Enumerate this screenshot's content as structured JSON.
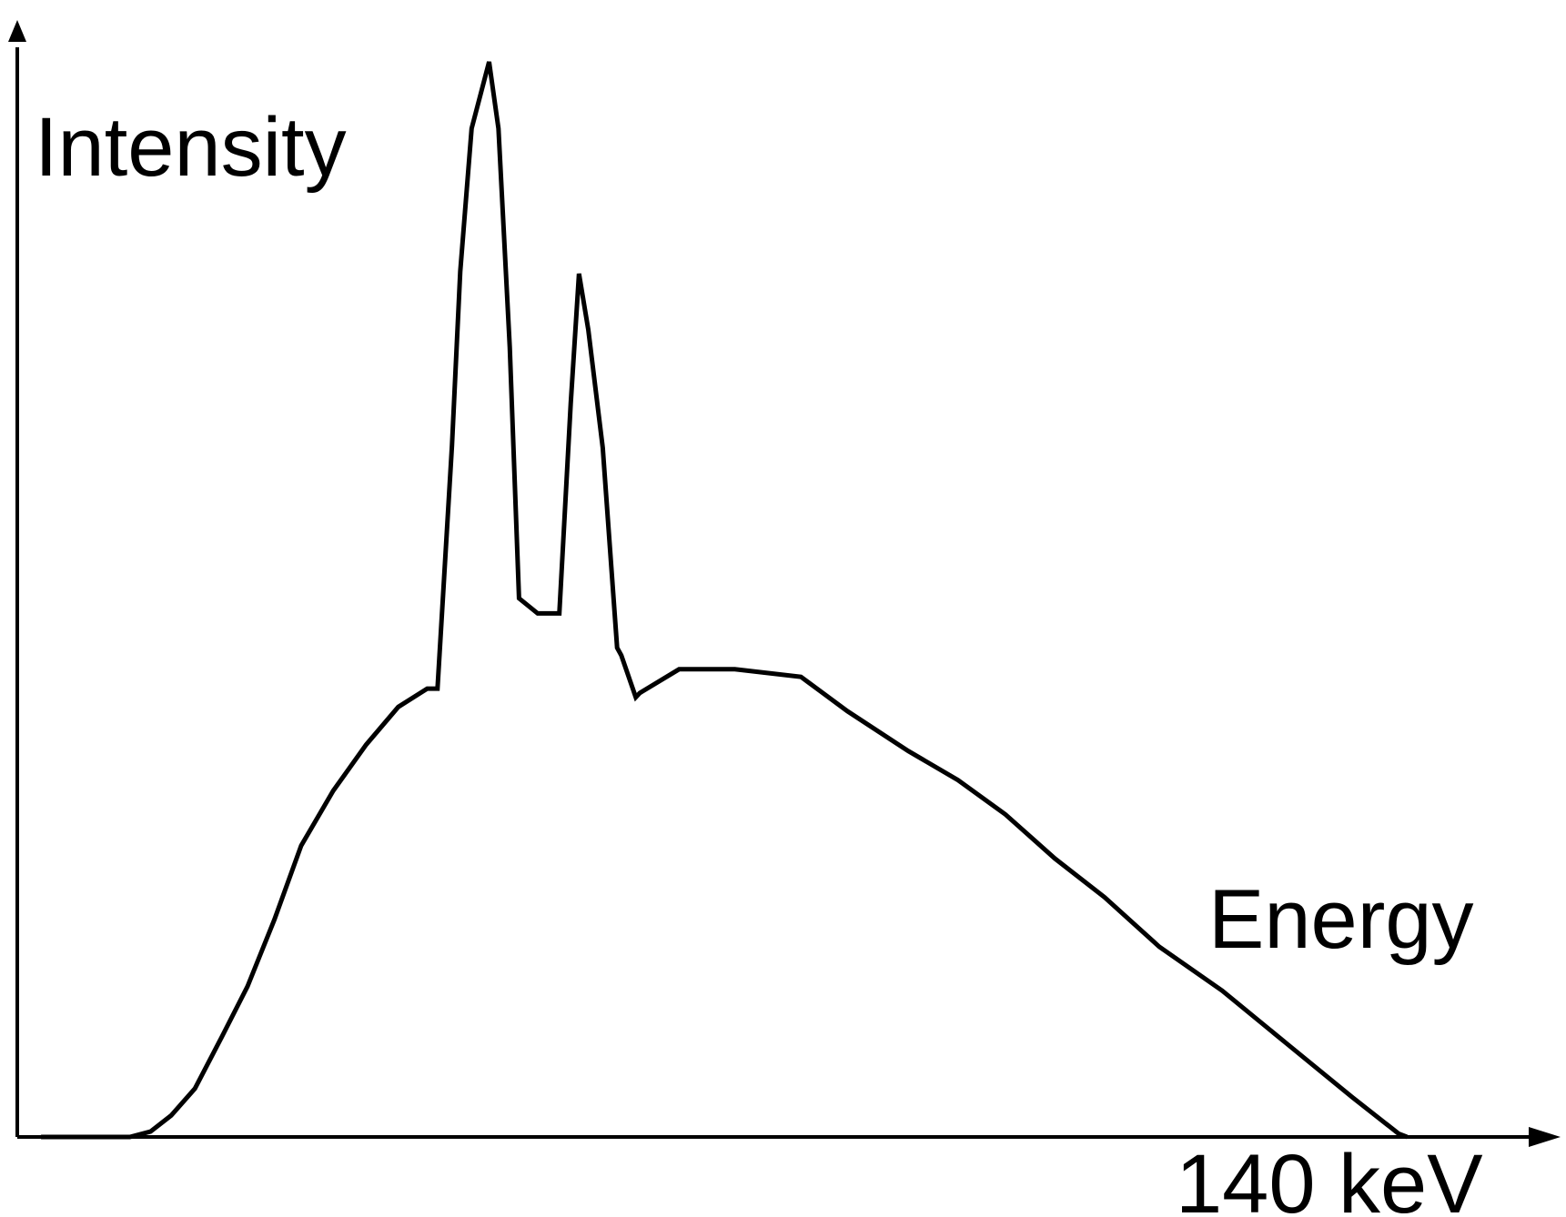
{
  "chart_data": {
    "type": "line",
    "title": "",
    "ylabel": "Intensity",
    "xlabel": "Energy",
    "x_tick_labels": [
      "140 keV"
    ],
    "xlim": [
      0,
      150
    ],
    "ylim": [
      0,
      100
    ],
    "grid": false,
    "legend": "none",
    "line_color": "#000000",
    "series": [
      {
        "x": [
          2.3,
          8.6,
          10.9,
          12.9,
          14.9,
          17.2,
          19.8,
          22.3,
          24.9,
          27.5,
          30.6,
          33.8,
          36.9,
          39.7,
          40.7,
          42.1,
          42.9,
          44.0,
          45.7,
          46.6,
          47.7,
          48.6,
          50.4,
          52.5,
          53.6,
          54.4,
          55.3,
          56.7,
          58.1,
          58.5,
          59.9,
          60.3,
          64.1,
          69.5,
          75.9,
          80.4,
          86.3,
          91.1,
          95.7,
          100.5,
          105.3,
          110.6,
          116.7,
          122.8,
          129.3,
          133.8,
          134.6
        ],
        "y": [
          0.0,
          0.0,
          0.0,
          0.5,
          2.0,
          4.5,
          9.3,
          14.0,
          20.2,
          27.1,
          32.2,
          36.5,
          40.0,
          41.7,
          41.7,
          64.3,
          80.5,
          93.8,
          100.0,
          93.8,
          73.5,
          50.1,
          48.7,
          48.7,
          68.2,
          80.3,
          75.1,
          64.1,
          45.5,
          44.8,
          40.9,
          41.3,
          43.5,
          43.5,
          42.8,
          39.6,
          35.9,
          33.2,
          30.0,
          25.9,
          22.3,
          17.7,
          13.6,
          8.8,
          3.7,
          0.3,
          0.0
        ]
      }
    ]
  }
}
